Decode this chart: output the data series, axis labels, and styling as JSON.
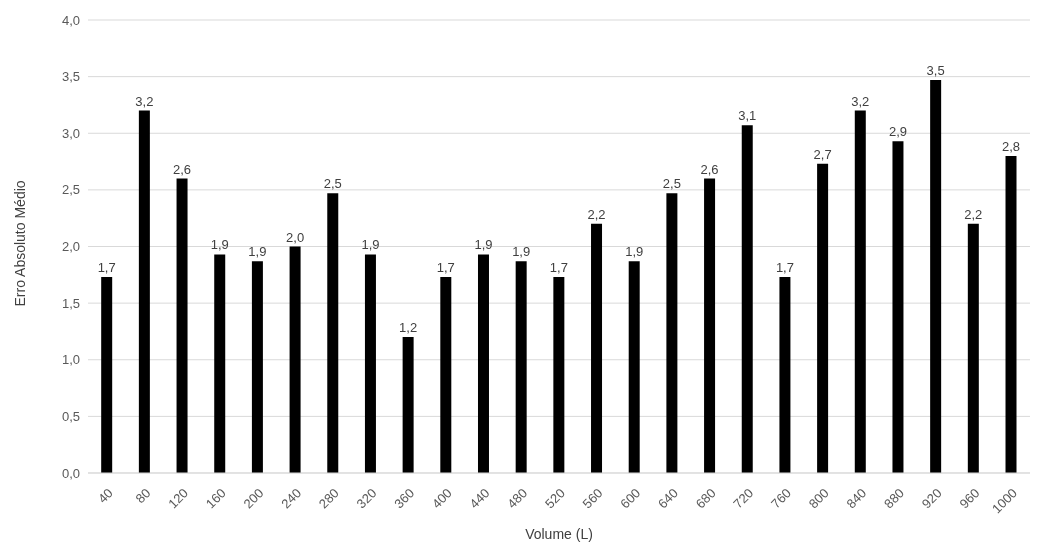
{
  "chart_data": {
    "type": "bar",
    "xlabel": "Volume (L)",
    "ylabel": "Erro Absoluto Médio",
    "categories": [
      "40",
      "80",
      "120",
      "160",
      "200",
      "240",
      "280",
      "320",
      "360",
      "400",
      "440",
      "480",
      "520",
      "560",
      "600",
      "640",
      "680",
      "720",
      "760",
      "800",
      "840",
      "880",
      "920",
      "960",
      "1000"
    ],
    "values": [
      1.73,
      3.2,
      2.6,
      1.93,
      1.87,
      2.0,
      2.47,
      1.93,
      1.2,
      1.73,
      1.93,
      1.87,
      1.73,
      2.2,
      1.87,
      2.47,
      2.6,
      3.07,
      1.73,
      2.73,
      3.2,
      2.93,
      3.47,
      2.2,
      2.8
    ],
    "value_labels": [
      "1,7",
      "3,2",
      "2,6",
      "1,9",
      "1,9",
      "2,0",
      "2,5",
      "1,9",
      "1,2",
      "1,7",
      "1,9",
      "1,9",
      "1,7",
      "2,2",
      "1,9",
      "2,5",
      "2,6",
      "3,1",
      "1,7",
      "2,7",
      "3,2",
      "2,9",
      "3,5",
      "2,2",
      "2,8"
    ],
    "color": "#000000",
    "ylim": [
      0,
      4
    ],
    "yticks": [
      {
        "value": 0,
        "label": "0,0"
      },
      {
        "value": 0.5,
        "label": "0,5"
      },
      {
        "value": 1,
        "label": "1,0"
      },
      {
        "value": 1.5,
        "label": "1,5"
      },
      {
        "value": 2,
        "label": "2,0"
      },
      {
        "value": 2.5,
        "label": "2,5"
      },
      {
        "value": 3,
        "label": "3,0"
      },
      {
        "value": 3.5,
        "label": "3,5"
      },
      {
        "value": 4,
        "label": "4,0"
      }
    ],
    "grid": "y",
    "legend": false
  }
}
